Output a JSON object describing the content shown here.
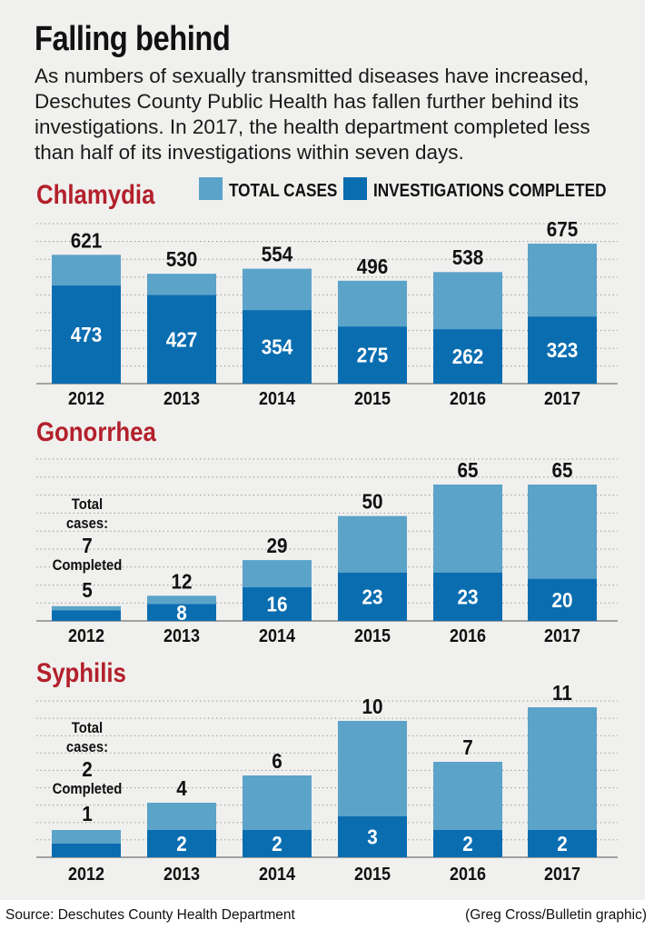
{
  "title": "Falling behind",
  "subtitle": "As numbers of sexually transmitted diseases have increased, Deschutes County Public Health has fallen further behind its investigations. In 2017, the health department completed less than half of its investigations within seven days.",
  "legend": {
    "total": "TOTAL CASES",
    "completed": "INVESTIGATIONS COMPLETED"
  },
  "colors": {
    "total": "#5ba3c9",
    "completed": "#0a6db0",
    "heading": "#b3202b",
    "grid": "#9a9a9a",
    "background": "#f0f0ee"
  },
  "footer": {
    "source": "Source: Deschutes County Health Department",
    "credit": "(Greg Cross/Bulletin graphic)"
  },
  "chart_data": [
    {
      "type": "bar",
      "title": "Chlamydia",
      "categories": [
        "2012",
        "2013",
        "2014",
        "2015",
        "2016",
        "2017"
      ],
      "series": [
        {
          "name": "TOTAL CASES",
          "values": [
            621,
            530,
            554,
            496,
            538,
            675
          ]
        },
        {
          "name": "INVESTIGATIONS COMPLETED",
          "values": [
            473,
            427,
            354,
            275,
            262,
            323
          ]
        }
      ],
      "ylim": [
        0,
        700
      ],
      "grid": true,
      "legend": "top-right"
    },
    {
      "type": "bar",
      "title": "Gonorrhea",
      "categories": [
        "2012",
        "2013",
        "2014",
        "2015",
        "2016",
        "2017"
      ],
      "series": [
        {
          "name": "TOTAL CASES",
          "values": [
            7,
            12,
            29,
            50,
            65,
            65
          ]
        },
        {
          "name": "INVESTIGATIONS COMPLETED",
          "values": [
            5,
            8,
            16,
            23,
            23,
            20
          ]
        }
      ],
      "annotation": {
        "total": "Total cases:",
        "completed": "Completed"
      },
      "ylim": [
        0,
        70
      ],
      "grid": true
    },
    {
      "type": "bar",
      "title": "Syphilis",
      "categories": [
        "2012",
        "2013",
        "2014",
        "2015",
        "2016",
        "2017"
      ],
      "series": [
        {
          "name": "TOTAL CASES",
          "values": [
            2,
            4,
            6,
            10,
            7,
            11
          ]
        },
        {
          "name": "INVESTIGATIONS COMPLETED",
          "values": [
            1,
            2,
            2,
            3,
            2,
            2
          ]
        }
      ],
      "annotation": {
        "total": "Total cases:",
        "completed": "Completed"
      },
      "ylim": [
        0,
        12
      ],
      "grid": true
    }
  ]
}
